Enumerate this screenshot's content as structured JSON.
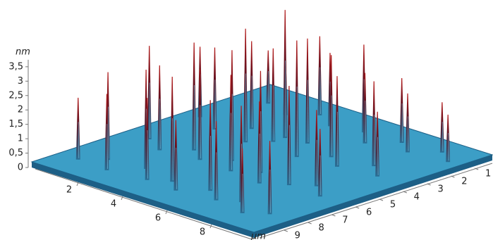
{
  "chart_data": {
    "type": "surface3d",
    "z_label": "nm",
    "x_label": "µm",
    "xlim": [
      0,
      10
    ],
    "ylim": [
      0,
      10
    ],
    "zlim": [
      0,
      3.5
    ],
    "xticks": [
      2,
      4,
      6,
      8
    ],
    "yticks": [
      9,
      8,
      7,
      6,
      5,
      4,
      3,
      2,
      1
    ],
    "zticks": [
      0,
      {
        "value": 0.5,
        "label": "0,5"
      },
      1,
      {
        "value": 1.5,
        "label": "1,5"
      },
      2,
      {
        "value": 2.5,
        "label": "2,5"
      },
      3,
      {
        "value": 3.5,
        "label": "3,5"
      }
    ],
    "spikes": {
      "x": [
        0.8,
        1.5,
        2.2,
        3.0,
        3.8,
        4.5,
        5.2,
        6.0,
        6.8,
        7.5,
        8.3,
        9.0,
        1.0,
        2.0,
        2.8,
        3.6,
        4.4,
        5.1,
        5.9,
        6.6,
        7.4,
        8.1,
        8.9,
        0.6,
        1.8,
        2.6,
        3.4,
        4.0,
        4.9,
        5.6,
        6.4,
        7.2,
        8.0,
        8.8,
        1.2,
        2.4,
        3.2,
        4.2,
        5.4,
        6.2,
        7.0,
        7.8,
        8.6,
        9.4,
        4.0
      ],
      "y": [
        8.8,
        8.2,
        8.9,
        8.0,
        8.7,
        8.3,
        8.8,
        8.1,
        8.6,
        8.2,
        8.9,
        8.4,
        6.0,
        6.5,
        5.8,
        6.3,
        5.7,
        6.4,
        5.9,
        6.6,
        6.1,
        5.6,
        6.2,
        3.5,
        4.0,
        3.2,
        4.2,
        3.6,
        3.0,
        4.1,
        3.4,
        3.9,
        3.1,
        3.7,
        1.2,
        1.6,
        0.9,
        1.4,
        1.1,
        1.8,
        1.0,
        1.5,
        0.8,
        1.3,
        3.1
      ],
      "z": [
        2.1,
        3.0,
        2.6,
        3.4,
        2.8,
        3.6,
        2.4,
        3.1,
        2.7,
        3.3,
        2.2,
        2.5,
        3.2,
        2.9,
        3.7,
        3.1,
        3.8,
        3.3,
        3.5,
        2.8,
        3.4,
        2.6,
        2.3,
        2.4,
        2.8,
        3.0,
        3.9,
        3.2,
        3.6,
        4.0,
        3.5,
        3.1,
        2.9,
        2.2,
        1.8,
        2.3,
        2.7,
        2.5,
        3.0,
        2.4,
        2.2,
        2.0,
        1.7,
        1.6,
        4.4
      ]
    },
    "colors": {
      "surface": "#3c9ec6",
      "edge": "#1d5f86",
      "peak": "#9a1515",
      "base": "#1b3f5e"
    }
  }
}
